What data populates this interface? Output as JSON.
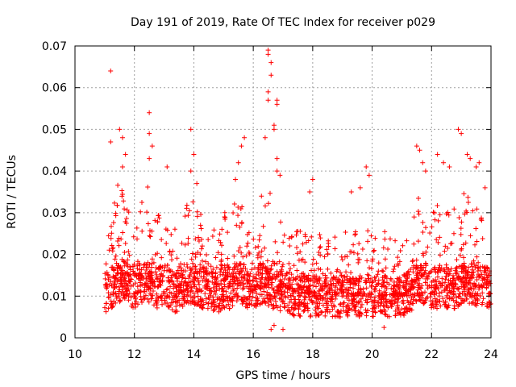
{
  "chart_data": {
    "type": "scatter",
    "title": "Day 191 of 2019, Rate Of TEC Index for receiver p029",
    "xlabel": "GPS time / hours",
    "ylabel": "ROTI / TECUs",
    "xlim": [
      10,
      24
    ],
    "ylim": [
      0,
      0.07
    ],
    "x_ticks": [
      10,
      12,
      14,
      16,
      18,
      20,
      22,
      24
    ],
    "x_tick_labels": [
      "10",
      "12",
      "14",
      "16",
      "18",
      "20",
      "22",
      "24"
    ],
    "y_ticks": [
      0,
      0.01,
      0.02,
      0.03,
      0.04,
      0.05,
      0.06,
      0.07
    ],
    "y_tick_labels": [
      "0",
      "0.01",
      "0.02",
      "0.03",
      "0.04",
      "0.05",
      "0.06",
      "0.07"
    ],
    "grid": true,
    "marker": "plus",
    "color": "#ff0000",
    "series": [
      {
        "name": "ROTI p029",
        "profile_x": [
          11.0,
          11.2,
          11.4,
          11.6,
          11.8,
          12.0,
          12.2,
          12.4,
          12.6,
          12.8,
          13.0,
          13.2,
          13.4,
          13.6,
          13.8,
          14.0,
          14.2,
          14.4,
          14.6,
          14.8,
          15.0,
          15.2,
          15.4,
          15.6,
          15.8,
          16.0,
          16.2,
          16.4,
          16.6,
          16.8,
          17.0,
          17.2,
          17.4,
          17.6,
          17.8,
          18.0,
          18.2,
          18.4,
          18.6,
          18.8,
          19.0,
          19.2,
          19.4,
          19.6,
          19.8,
          20.0,
          20.2,
          20.4,
          20.6,
          20.8,
          21.0,
          21.2,
          21.4,
          21.6,
          21.8,
          22.0,
          22.2,
          22.4,
          22.6,
          22.8,
          23.0,
          23.2,
          23.4,
          23.6,
          23.8,
          24.0
        ],
        "profile_base": [
          0.011,
          0.012,
          0.013,
          0.014,
          0.013,
          0.012,
          0.013,
          0.014,
          0.013,
          0.012,
          0.013,
          0.012,
          0.011,
          0.012,
          0.013,
          0.013,
          0.012,
          0.012,
          0.011,
          0.011,
          0.012,
          0.012,
          0.013,
          0.013,
          0.012,
          0.012,
          0.013,
          0.013,
          0.012,
          0.011,
          0.011,
          0.011,
          0.01,
          0.01,
          0.01,
          0.01,
          0.01,
          0.01,
          0.01,
          0.01,
          0.01,
          0.01,
          0.01,
          0.01,
          0.01,
          0.01,
          0.01,
          0.01,
          0.01,
          0.01,
          0.01,
          0.011,
          0.012,
          0.013,
          0.013,
          0.012,
          0.012,
          0.012,
          0.012,
          0.012,
          0.013,
          0.013,
          0.013,
          0.012,
          0.012,
          0.012
        ],
        "profile_spread": [
          0.008,
          0.012,
          0.018,
          0.016,
          0.012,
          0.01,
          0.012,
          0.018,
          0.014,
          0.012,
          0.012,
          0.012,
          0.011,
          0.012,
          0.015,
          0.016,
          0.012,
          0.012,
          0.01,
          0.01,
          0.012,
          0.013,
          0.014,
          0.014,
          0.012,
          0.012,
          0.016,
          0.02,
          0.016,
          0.012,
          0.011,
          0.011,
          0.01,
          0.011,
          0.011,
          0.01,
          0.01,
          0.012,
          0.011,
          0.01,
          0.01,
          0.01,
          0.01,
          0.01,
          0.011,
          0.01,
          0.01,
          0.01,
          0.01,
          0.01,
          0.01,
          0.012,
          0.014,
          0.018,
          0.016,
          0.012,
          0.014,
          0.012,
          0.013,
          0.014,
          0.017,
          0.016,
          0.014,
          0.013,
          0.013,
          0.012
        ],
        "outliers": [
          [
            11.2,
            0.064
          ],
          [
            11.2,
            0.047
          ],
          [
            11.5,
            0.05
          ],
          [
            11.6,
            0.048
          ],
          [
            11.7,
            0.044
          ],
          [
            11.6,
            0.041
          ],
          [
            12.5,
            0.054
          ],
          [
            12.5,
            0.049
          ],
          [
            12.6,
            0.046
          ],
          [
            12.5,
            0.043
          ],
          [
            13.1,
            0.041
          ],
          [
            13.9,
            0.05
          ],
          [
            14.0,
            0.044
          ],
          [
            13.9,
            0.04
          ],
          [
            14.1,
            0.037
          ],
          [
            15.7,
            0.048
          ],
          [
            15.6,
            0.046
          ],
          [
            15.5,
            0.042
          ],
          [
            15.4,
            0.038
          ],
          [
            16.5,
            0.069
          ],
          [
            16.5,
            0.068
          ],
          [
            16.6,
            0.066
          ],
          [
            16.6,
            0.063
          ],
          [
            16.5,
            0.059
          ],
          [
            16.5,
            0.057
          ],
          [
            16.8,
            0.057
          ],
          [
            16.8,
            0.056
          ],
          [
            16.7,
            0.051
          ],
          [
            16.7,
            0.05
          ],
          [
            16.8,
            0.043
          ],
          [
            16.4,
            0.048
          ],
          [
            16.8,
            0.04
          ],
          [
            16.9,
            0.039
          ],
          [
            17.0,
            0.002
          ],
          [
            16.7,
            0.003
          ],
          [
            16.6,
            0.002
          ],
          [
            18.0,
            0.038
          ],
          [
            17.9,
            0.035
          ],
          [
            19.3,
            0.035
          ],
          [
            19.6,
            0.036
          ],
          [
            19.8,
            0.041
          ],
          [
            19.9,
            0.039
          ],
          [
            20.4,
            0.0025
          ],
          [
            21.5,
            0.046
          ],
          [
            21.6,
            0.045
          ],
          [
            21.7,
            0.042
          ],
          [
            21.8,
            0.04
          ],
          [
            22.2,
            0.044
          ],
          [
            22.4,
            0.042
          ],
          [
            22.6,
            0.041
          ],
          [
            22.9,
            0.05
          ],
          [
            23.0,
            0.049
          ],
          [
            23.2,
            0.044
          ],
          [
            23.3,
            0.043
          ],
          [
            23.5,
            0.041
          ],
          [
            23.6,
            0.042
          ],
          [
            23.8,
            0.036
          ]
        ]
      }
    ]
  }
}
